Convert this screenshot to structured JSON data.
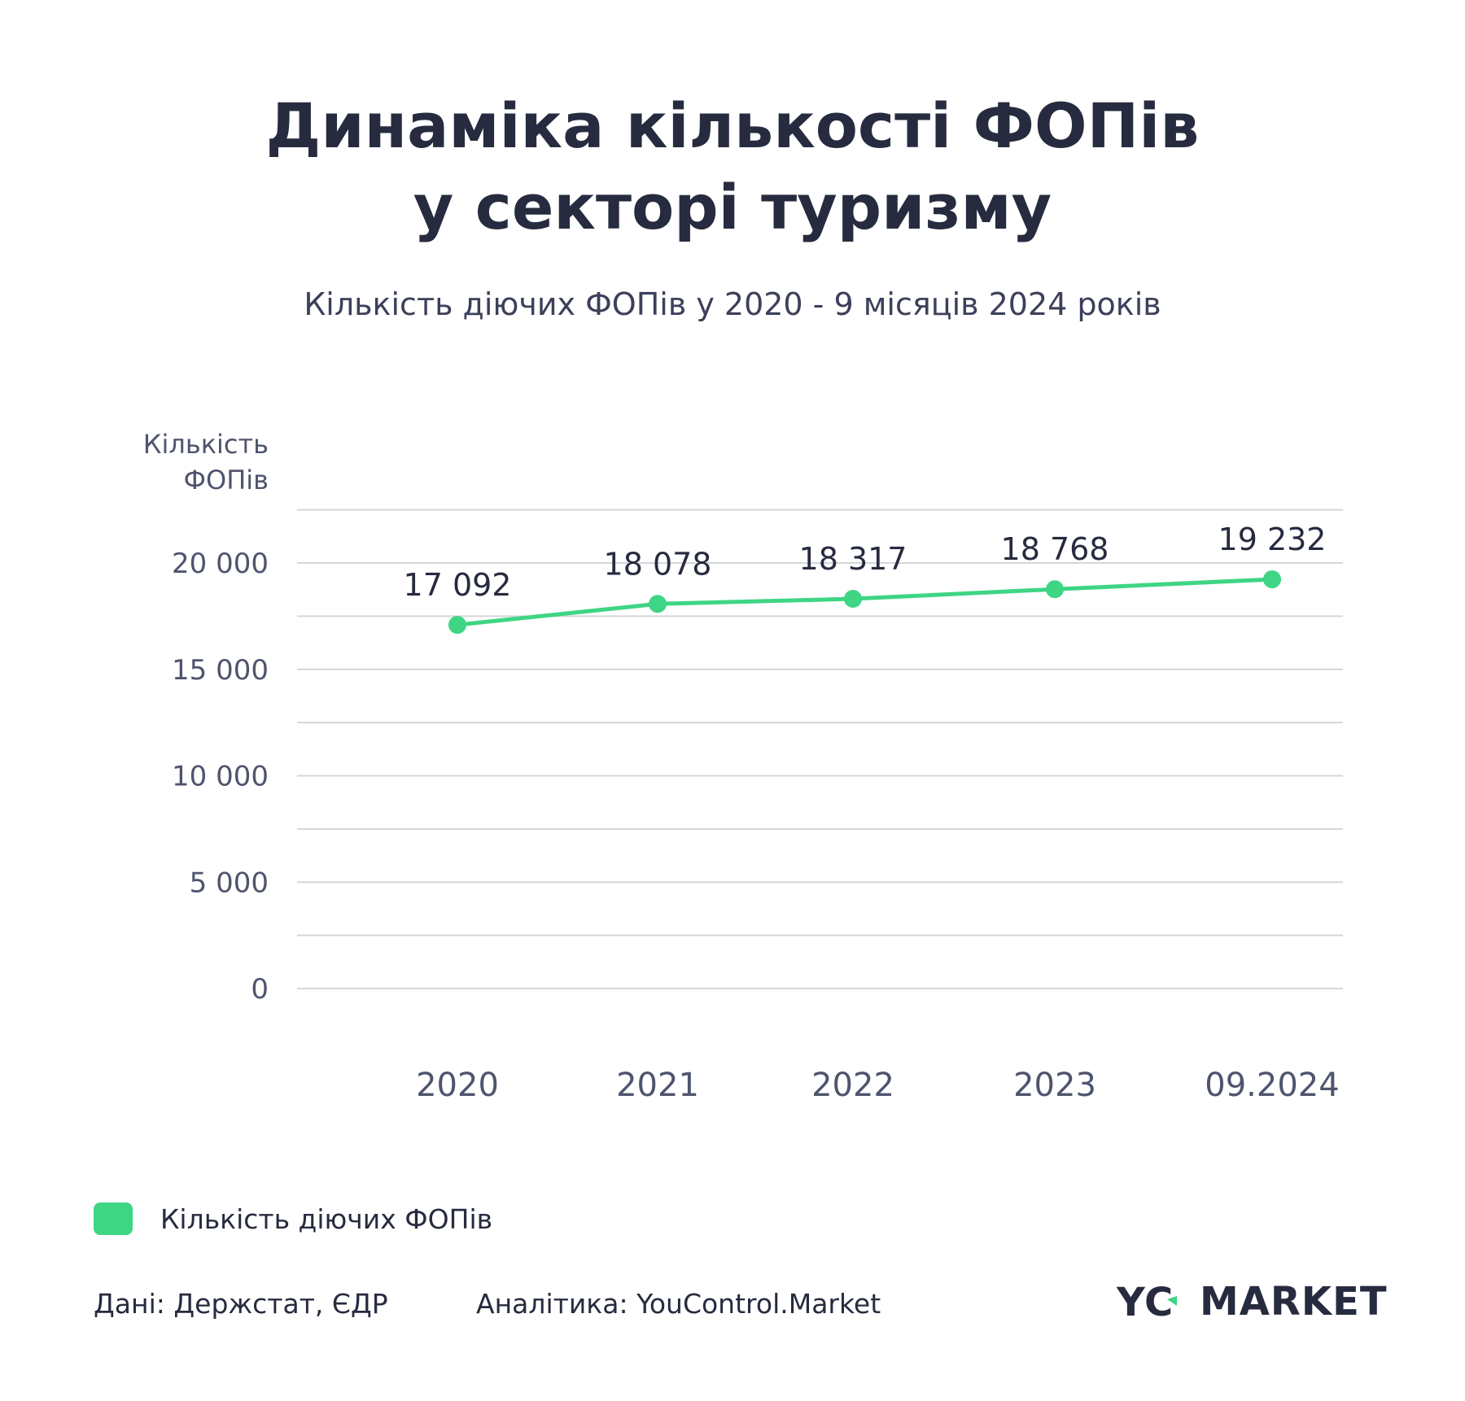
{
  "header": {
    "title_line1": "Динаміка кількості ФОПів",
    "title_line2": "у секторі туризму",
    "subtitle": "Кількість діючих ФОПів у 2020 - 9 місяців 2024 років"
  },
  "colors": {
    "series": "#3ed584",
    "grid": "#d4d6dc",
    "text": "#272b3f",
    "axis_text": "#4f546e"
  },
  "chart_data": {
    "type": "line",
    "ylabel_line1": "Кількість",
    "ylabel_line2": "ФОПів",
    "categories": [
      "2020",
      "2021",
      "2022",
      "2023",
      "09.2024"
    ],
    "series": [
      {
        "name": "Кількість діючих ФОПів",
        "values": [
          17092,
          18078,
          18317,
          18768,
          19232
        ],
        "labels": [
          "17 092",
          "18 078",
          "18 317",
          "18 768",
          "19 232"
        ]
      }
    ],
    "y_ticks": [
      0,
      5000,
      10000,
      15000,
      20000
    ],
    "y_tick_labels": [
      "0",
      "5 000",
      "10 000",
      "15 000",
      "20 000"
    ],
    "ylim": [
      0,
      20000
    ],
    "grid": true,
    "legend": "bottom-left"
  },
  "legend": {
    "label": "Кількість діючих ФОПів"
  },
  "footer": {
    "source": "Дані: Держстат, ЄДР",
    "analytics": "Аналітика: YouControl.Market",
    "brand_text": "MARKET",
    "brand_letters": "YC"
  }
}
